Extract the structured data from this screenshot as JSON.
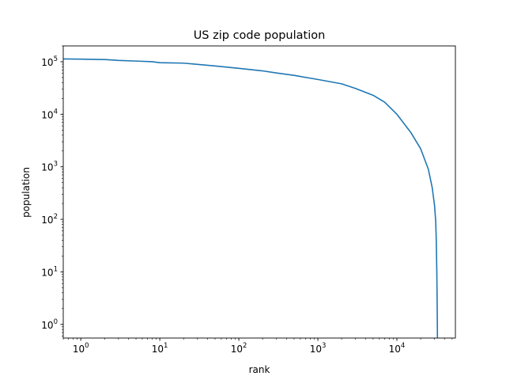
{
  "chart_data": {
    "type": "line",
    "title": "US zip code population",
    "xlabel": "rank",
    "ylabel": "population",
    "xscale": "log",
    "yscale": "log",
    "xlim": [
      0.6,
      55000
    ],
    "ylim": [
      0.55,
      200000
    ],
    "grid": false,
    "legend": "none",
    "x_ticks": [
      {
        "base": "10",
        "exp": "0",
        "value": 1
      },
      {
        "base": "10",
        "exp": "1",
        "value": 10
      },
      {
        "base": "10",
        "exp": "2",
        "value": 100
      },
      {
        "base": "10",
        "exp": "3",
        "value": 1000
      },
      {
        "base": "10",
        "exp": "4",
        "value": 10000
      }
    ],
    "y_ticks": [
      {
        "base": "10",
        "exp": "0",
        "value": 1
      },
      {
        "base": "10",
        "exp": "1",
        "value": 10
      },
      {
        "base": "10",
        "exp": "2",
        "value": 100
      },
      {
        "base": "10",
        "exp": "3",
        "value": 1000
      },
      {
        "base": "10",
        "exp": "4",
        "value": 10000
      },
      {
        "base": "10",
        "exp": "5",
        "value": 100000
      }
    ],
    "series": [
      {
        "color": "#1f77b4",
        "x": [
          0.6,
          1,
          2,
          3,
          5,
          8,
          10,
          20,
          30,
          50,
          100,
          200,
          300,
          500,
          1000,
          2000,
          3000,
          5000,
          7000,
          10000,
          15000,
          20000,
          25000,
          28000,
          30000,
          31000,
          31500,
          32000,
          32300,
          32500,
          32600
        ],
        "y": [
          113000,
          112000,
          110000,
          106000,
          103000,
          100000,
          96000,
          94000,
          89000,
          83000,
          75000,
          67000,
          61000,
          55000,
          46000,
          38000,
          31000,
          23000,
          17000,
          10000,
          4500,
          2200,
          900,
          400,
          180,
          90,
          40,
          10,
          3,
          1,
          0.55
        ]
      }
    ]
  }
}
